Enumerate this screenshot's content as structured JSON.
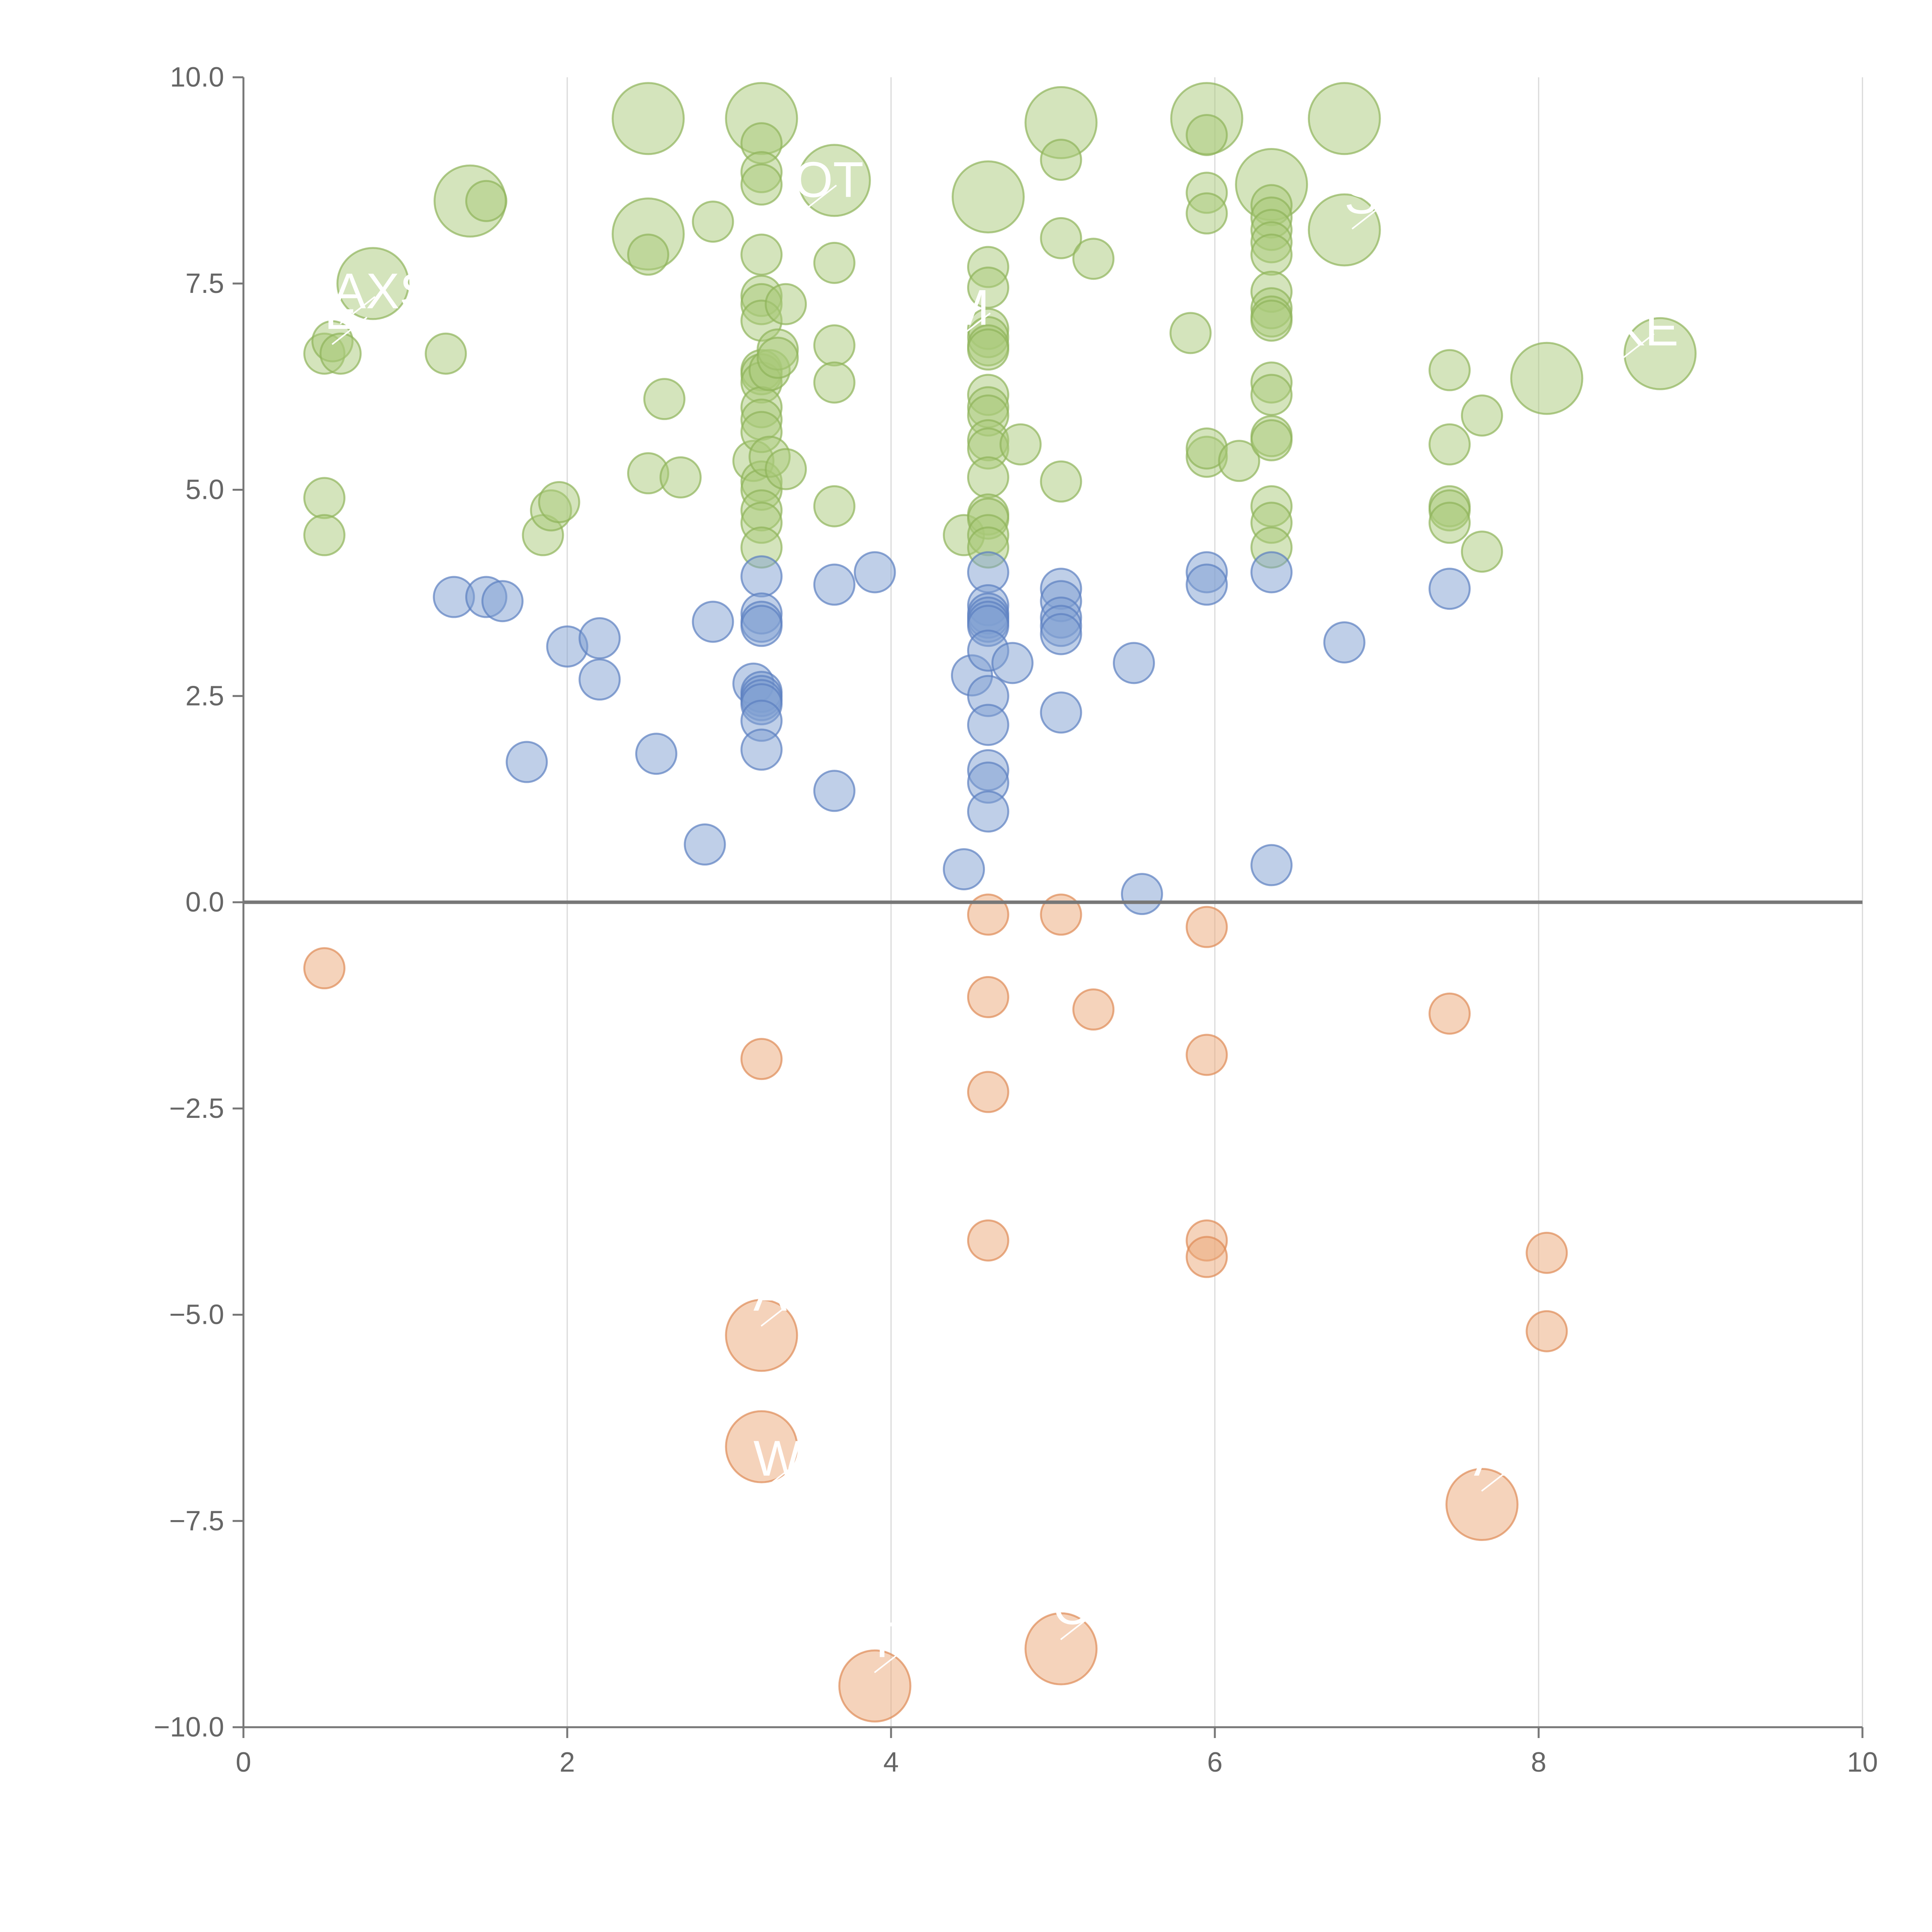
{
  "chart_data": {
    "type": "scatter",
    "title": "",
    "xlabel": "",
    "ylabel": "",
    "xlim": [
      0,
      10
    ],
    "ylim": [
      -10,
      10
    ],
    "x_ticks": [
      0,
      2,
      4,
      6,
      8,
      10
    ],
    "x_tick_labels": [
      "0",
      "2",
      "4",
      "6",
      "8",
      "10"
    ],
    "y_ticks": [
      10,
      7.5,
      5,
      2.5,
      0,
      -2.5,
      -5,
      -7.5,
      -10
    ],
    "y_tick_labels": [
      "10.0",
      "7.5",
      "5.0",
      "2.5",
      "0.0",
      "−2.5",
      "−5.0",
      "−7.5",
      "−10.0"
    ],
    "grid": {
      "vertical": true,
      "horizontal": false
    },
    "zero_line": true,
    "colors": {
      "green_fill": "#a9c97a",
      "green_stroke": "#8fb35a",
      "blue_fill": "#7f9fd2",
      "blue_stroke": "#5b7fc0",
      "orange_fill": "#eba878",
      "orange_stroke": "#de8a55"
    },
    "series": [
      {
        "color": "green",
        "points": [
          [
            0.8,
            7.5,
            3
          ],
          [
            1.4,
            8.5,
            3
          ],
          [
            2.5,
            8.1,
            3
          ],
          [
            2.5,
            9.5,
            3
          ],
          [
            3.2,
            9.5,
            3
          ],
          [
            3.65,
            8.75,
            3
          ],
          [
            4.6,
            8.55,
            3
          ],
          [
            5.05,
            9.45,
            3
          ],
          [
            5.95,
            9.5,
            3
          ],
          [
            6.8,
            9.5,
            3
          ],
          [
            6.35,
            8.7,
            3
          ],
          [
            6.8,
            8.15,
            3
          ],
          [
            8.05,
            6.35,
            3
          ],
          [
            8.75,
            6.65,
            3
          ],
          [
            0.5,
            6.65,
            1
          ],
          [
            0.55,
            6.8,
            1
          ],
          [
            0.6,
            6.65,
            1
          ],
          [
            0.5,
            4.9,
            1
          ],
          [
            0.5,
            4.45,
            1
          ],
          [
            1.25,
            6.65,
            1
          ],
          [
            1.5,
            8.5,
            1
          ],
          [
            1.85,
            4.45,
            1
          ],
          [
            1.9,
            4.75,
            1
          ],
          [
            1.95,
            4.85,
            1
          ],
          [
            2.5,
            5.2,
            1
          ],
          [
            2.5,
            7.85,
            1
          ],
          [
            2.6,
            6.1,
            1
          ],
          [
            2.7,
            5.15,
            1
          ],
          [
            2.9,
            8.25,
            1
          ],
          [
            3.15,
            5.35,
            1
          ],
          [
            3.2,
            9.2,
            1
          ],
          [
            3.2,
            8.85,
            1
          ],
          [
            3.2,
            8.7,
            1
          ],
          [
            3.2,
            7.85,
            1
          ],
          [
            3.2,
            7.35,
            1
          ],
          [
            3.2,
            7.25,
            1
          ],
          [
            3.2,
            7.05,
            1
          ],
          [
            3.2,
            6.45,
            1
          ],
          [
            3.2,
            6.4,
            1
          ],
          [
            3.2,
            6.3,
            1
          ],
          [
            3.2,
            6.0,
            1
          ],
          [
            3.2,
            5.85,
            1
          ],
          [
            3.2,
            5.7,
            1
          ],
          [
            3.2,
            5.1,
            1
          ],
          [
            3.2,
            5.0,
            1
          ],
          [
            3.2,
            4.75,
            1
          ],
          [
            3.2,
            4.6,
            1
          ],
          [
            3.2,
            4.3,
            1
          ],
          [
            3.25,
            5.4,
            1
          ],
          [
            3.25,
            6.45,
            1
          ],
          [
            3.3,
            6.7,
            1
          ],
          [
            3.3,
            6.6,
            1
          ],
          [
            3.35,
            7.25,
            1
          ],
          [
            3.35,
            5.25,
            1
          ],
          [
            3.65,
            7.75,
            1
          ],
          [
            3.65,
            6.75,
            1
          ],
          [
            3.65,
            6.3,
            1
          ],
          [
            3.65,
            4.8,
            1
          ],
          [
            4.45,
            4.45,
            1
          ],
          [
            4.6,
            7.7,
            1
          ],
          [
            4.6,
            7.45,
            1
          ],
          [
            4.6,
            6.95,
            1
          ],
          [
            4.6,
            6.85,
            1
          ],
          [
            4.6,
            6.75,
            1
          ],
          [
            4.6,
            6.7,
            1
          ],
          [
            4.6,
            6.15,
            1
          ],
          [
            4.6,
            6.0,
            1
          ],
          [
            4.6,
            5.9,
            1
          ],
          [
            4.6,
            5.6,
            1
          ],
          [
            4.6,
            5.5,
            1
          ],
          [
            4.6,
            5.15,
            1
          ],
          [
            4.6,
            4.7,
            1
          ],
          [
            4.6,
            4.65,
            1
          ],
          [
            4.6,
            4.45,
            1
          ],
          [
            4.6,
            4.3,
            1
          ],
          [
            4.8,
            5.55,
            1
          ],
          [
            5.05,
            9.0,
            1
          ],
          [
            5.05,
            8.05,
            1
          ],
          [
            5.05,
            5.1,
            1
          ],
          [
            5.25,
            7.8,
            1
          ],
          [
            5.85,
            6.9,
            1
          ],
          [
            5.95,
            9.3,
            1
          ],
          [
            5.95,
            8.6,
            1
          ],
          [
            5.95,
            8.35,
            1
          ],
          [
            5.95,
            5.4,
            1
          ],
          [
            5.95,
            5.5,
            1
          ],
          [
            6.15,
            5.35,
            1
          ],
          [
            6.35,
            8.45,
            1
          ],
          [
            6.35,
            8.3,
            1
          ],
          [
            6.35,
            8.15,
            1
          ],
          [
            6.35,
            8.0,
            1
          ],
          [
            6.35,
            7.85,
            1
          ],
          [
            6.35,
            7.4,
            1
          ],
          [
            6.35,
            7.2,
            1
          ],
          [
            6.35,
            7.1,
            1
          ],
          [
            6.35,
            7.05,
            1
          ],
          [
            6.35,
            6.3,
            1
          ],
          [
            6.35,
            6.15,
            1
          ],
          [
            6.35,
            5.65,
            1
          ],
          [
            6.35,
            5.6,
            1
          ],
          [
            6.35,
            4.8,
            1
          ],
          [
            6.35,
            4.6,
            1
          ],
          [
            6.35,
            4.3,
            1
          ],
          [
            7.45,
            6.45,
            1
          ],
          [
            7.45,
            5.55,
            1
          ],
          [
            7.45,
            4.8,
            1
          ],
          [
            7.45,
            4.75,
            1
          ],
          [
            7.45,
            4.6,
            1
          ],
          [
            7.65,
            5.9,
            1
          ],
          [
            7.65,
            4.25,
            1
          ]
        ]
      },
      {
        "color": "blue",
        "points": [
          [
            1.3,
            3.7,
            1
          ],
          [
            1.5,
            3.7,
            1
          ],
          [
            1.6,
            3.65,
            1
          ],
          [
            1.75,
            1.7,
            1
          ],
          [
            2.0,
            3.1,
            1
          ],
          [
            2.2,
            3.2,
            1
          ],
          [
            2.2,
            2.7,
            1
          ],
          [
            2.55,
            1.8,
            1
          ],
          [
            2.85,
            0.7,
            1
          ],
          [
            2.9,
            3.4,
            1
          ],
          [
            3.15,
            2.65,
            1
          ],
          [
            3.2,
            3.95,
            1
          ],
          [
            3.2,
            3.5,
            1
          ],
          [
            3.2,
            3.4,
            1
          ],
          [
            3.2,
            3.35,
            1
          ],
          [
            3.2,
            2.55,
            1
          ],
          [
            3.2,
            2.5,
            1
          ],
          [
            3.2,
            2.45,
            1
          ],
          [
            3.2,
            2.4,
            1
          ],
          [
            3.2,
            2.2,
            1
          ],
          [
            3.2,
            1.85,
            1
          ],
          [
            3.65,
            3.85,
            1
          ],
          [
            3.65,
            1.35,
            1
          ],
          [
            3.9,
            4.0,
            1
          ],
          [
            4.45,
            0.4,
            1
          ],
          [
            4.5,
            2.75,
            1
          ],
          [
            4.6,
            4.0,
            1
          ],
          [
            4.6,
            3.6,
            1
          ],
          [
            4.6,
            3.5,
            1
          ],
          [
            4.6,
            3.45,
            1
          ],
          [
            4.6,
            3.4,
            1
          ],
          [
            4.6,
            3.35,
            1
          ],
          [
            4.6,
            3.05,
            1
          ],
          [
            4.6,
            2.5,
            1
          ],
          [
            4.6,
            2.15,
            1
          ],
          [
            4.6,
            1.6,
            1
          ],
          [
            4.6,
            1.45,
            1
          ],
          [
            4.6,
            1.1,
            1
          ],
          [
            4.75,
            2.9,
            1
          ],
          [
            5.05,
            3.8,
            1
          ],
          [
            5.05,
            3.65,
            1
          ],
          [
            5.05,
            3.45,
            1
          ],
          [
            5.05,
            3.35,
            1
          ],
          [
            5.05,
            3.25,
            1
          ],
          [
            5.05,
            2.3,
            1
          ],
          [
            5.5,
            2.9,
            1
          ],
          [
            5.55,
            0.1,
            1
          ],
          [
            5.95,
            4.0,
            1
          ],
          [
            5.95,
            3.85,
            1
          ],
          [
            6.35,
            4.0,
            1
          ],
          [
            6.35,
            0.45,
            1
          ],
          [
            6.8,
            3.15,
            1
          ],
          [
            7.45,
            3.8,
            1
          ]
        ]
      },
      {
        "color": "orange",
        "points": [
          [
            0.5,
            -0.8,
            1
          ],
          [
            3.2,
            -1.9,
            1
          ],
          [
            3.2,
            -5.25,
            3
          ],
          [
            3.2,
            -6.6,
            3
          ],
          [
            3.9,
            -9.5,
            3
          ],
          [
            4.6,
            -0.15,
            1
          ],
          [
            4.6,
            -1.15,
            1
          ],
          [
            4.6,
            -2.3,
            1
          ],
          [
            4.6,
            -4.1,
            1
          ],
          [
            5.05,
            -0.15,
            1
          ],
          [
            5.05,
            -9.05,
            3
          ],
          [
            5.25,
            -1.3,
            1
          ],
          [
            5.95,
            -0.3,
            1
          ],
          [
            5.95,
            -1.85,
            1
          ],
          [
            5.95,
            -4.1,
            1
          ],
          [
            5.95,
            -4.3,
            1
          ],
          [
            7.45,
            -1.35,
            1
          ],
          [
            7.65,
            -7.3,
            3
          ],
          [
            8.05,
            -4.25,
            1
          ],
          [
            8.05,
            -5.2,
            1
          ]
        ]
      }
    ],
    "annotations": [
      {
        "text": "AXS",
        "x": 0.55,
        "y": 7.2
      },
      {
        "text": "E",
        "x": 0.5,
        "y": 6.95
      },
      {
        "text": "OT",
        "x": 3.4,
        "y": 8.55
      },
      {
        "text": "M",
        "x": 4.35,
        "y": 7.0
      },
      {
        "text": "S",
        "x": 6.8,
        "y": 8.35
      },
      {
        "text": "KE",
        "x": 8.45,
        "y": 6.75
      },
      {
        "text": "A",
        "x": 3.15,
        "y": -4.95
      },
      {
        "text": "W",
        "x": 3.15,
        "y": -6.95
      },
      {
        "text": "A",
        "x": 7.6,
        "y": -6.95
      },
      {
        "text": "O",
        "x": 5.0,
        "y": -8.75
      },
      {
        "text": "T",
        "x": 3.85,
        "y": -9.15
      }
    ]
  }
}
